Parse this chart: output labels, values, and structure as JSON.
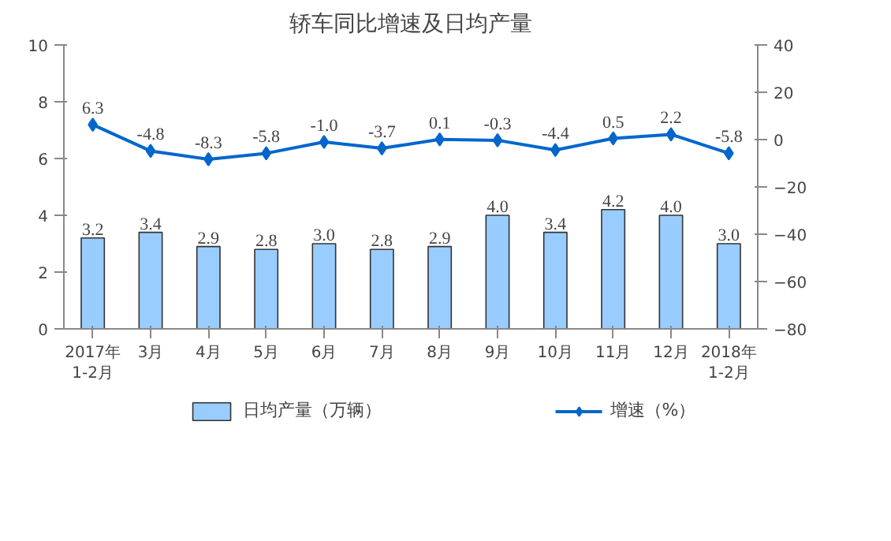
{
  "chart_data": {
    "type": "bar",
    "title": "轿车同比增速及日均产量",
    "categories": [
      "2017年\n1-2月",
      "3月",
      "4月",
      "5月",
      "6月",
      "7月",
      "8月",
      "9月",
      "10月",
      "11月",
      "12月",
      "2018年\n1-2月"
    ],
    "series": [
      {
        "name": "日均产量（万辆）",
        "color": "#99ccff",
        "values": [
          3.2,
          3.4,
          2.9,
          2.8,
          3.0,
          2.8,
          2.9,
          4.0,
          3.4,
          4.2,
          4.0,
          3.0
        ],
        "value_labels": [
          "3.2",
          "3.4",
          "2.9",
          "2.8",
          "3.0",
          "2.8",
          "2.9",
          "4.0",
          "3.4",
          "4.2",
          "4.0",
          "3.0"
        ]
      },
      {
        "name": "增速（%）",
        "type": "line",
        "axis": "y2",
        "color": "#0066cc",
        "marker": "diamond",
        "values": [
          6.3,
          -4.8,
          -8.3,
          -5.8,
          -1.0,
          -3.7,
          0.1,
          -0.3,
          -4.4,
          0.5,
          2.2,
          -5.8
        ],
        "value_labels": [
          "6.3",
          "-4.8",
          "-8.3",
          "-5.8",
          "-1.0",
          "-3.7",
          "0.1",
          "-0.3",
          "-4.4",
          "0.5",
          "2.2",
          "-5.8"
        ]
      }
    ],
    "ylim": [
      0,
      10
    ],
    "yticks": [
      0,
      2,
      4,
      6,
      8,
      10
    ],
    "y2lim": [
      -80,
      40
    ],
    "y2ticks": [
      -80,
      -60,
      -40,
      -20,
      0,
      20,
      40
    ],
    "grid": false,
    "legend": "bottom"
  }
}
